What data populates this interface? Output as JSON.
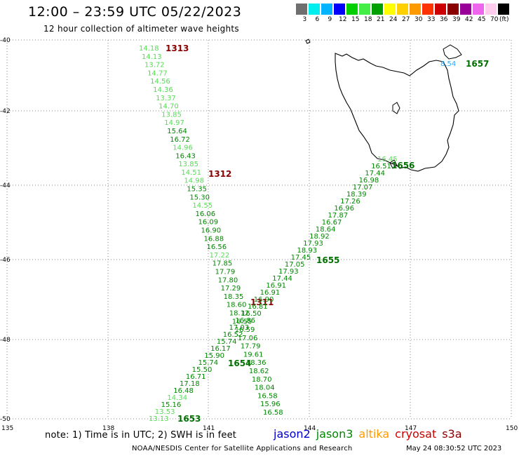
{
  "title": "12:00 – 23:59 UTC 05/22/2023",
  "subtitle": "12 hour collection of altimeter wave heights",
  "scale": {
    "colors": [
      "#6f6f6f",
      "#00eeee",
      "#00b4ff",
      "#0000ff",
      "#00d000",
      "#44ee44",
      "#00a000",
      "#ffff00",
      "#ffd000",
      "#ff9900",
      "#ff3300",
      "#cc0000",
      "#880000",
      "#990099",
      "#ee66ee",
      "#ffccee",
      "#000000"
    ],
    "labels": [
      "3",
      "6",
      "9",
      "12",
      "15",
      "18",
      "21",
      "24",
      "27",
      "30",
      "33",
      "36",
      "39",
      "42",
      "45",
      "70",
      "(ft)"
    ]
  },
  "map": {
    "lon_ticks": [
      "135",
      "138",
      "141",
      "144",
      "147",
      "150"
    ],
    "lat_ticks": [
      "-40",
      "-42",
      "-44",
      "-46",
      "-48",
      "-50"
    ]
  },
  "tracks": [
    {
      "time": "1313",
      "time_color": "#880000",
      "values": [
        "14.18",
        "14.13",
        "13.72",
        "14.77",
        "14.56",
        "14.36",
        "13.37",
        "14.70",
        "13.85",
        "14.97",
        "15.64",
        "16.72",
        "14.96",
        "16.43",
        "13.85",
        "14.51",
        "14.98",
        "15.35",
        "15.30",
        "14.55",
        "16.06",
        "16.09",
        "16.90",
        "16.88",
        "16.56",
        "17.22",
        "17.85",
        "17.79",
        "17.80",
        "17.29",
        "18.35",
        "18.60",
        "18.12",
        "16.55",
        "16.59",
        "17.06",
        "17.79",
        "19.61",
        "18.36",
        "18.62",
        "18.70",
        "18.04",
        "16.58",
        "15.96",
        "16.58"
      ],
      "colors": [
        "light",
        "light",
        "light",
        "light",
        "light",
        "light",
        "light",
        "light",
        "light",
        "light",
        "green",
        "green",
        "light",
        "green",
        "light",
        "light",
        "light",
        "green",
        "green",
        "light",
        "green",
        "green",
        "green",
        "green",
        "green",
        "light",
        "green",
        "green",
        "green",
        "green",
        "green",
        "green",
        "green",
        "green",
        "green",
        "green",
        "green",
        "green",
        "green",
        "green",
        "green",
        "green",
        "green",
        "green",
        "green"
      ]
    },
    {
      "time": "1312",
      "time_color": "#880000"
    },
    {
      "time": "1311",
      "time_color": "#880000"
    },
    {
      "time": "1657",
      "time_color": "#007000",
      "values": [
        "8.54"
      ]
    },
    {
      "time": "1656",
      "time_color": "#007000",
      "values": [
        "16.45",
        "16.51",
        "17.44",
        "16.98",
        "17.07",
        "18.39",
        "17.26",
        "16.96",
        "17.87",
        "16.67",
        "18.64",
        "18.92",
        "17.93",
        "18.93",
        "17.45",
        "17.05",
        "17.93",
        "17.44",
        "16.91",
        "16.91",
        "16.90",
        "16.81",
        "16.50",
        "16.86",
        "17.03",
        "16.52",
        "15.74",
        "16.17",
        "15.90",
        "15.74",
        "15.50",
        "16.71",
        "17.18",
        "16.48",
        "14.34",
        "15.16",
        "13.53",
        "13.13"
      ],
      "colors": [
        "light",
        "green",
        "green",
        "green",
        "green",
        "green",
        "green",
        "green",
        "green",
        "green",
        "green",
        "green",
        "green",
        "green",
        "green",
        "green",
        "green",
        "green",
        "green",
        "green",
        "green",
        "green",
        "green",
        "green",
        "green",
        "green",
        "green",
        "green",
        "green",
        "green",
        "green",
        "green",
        "green",
        "green",
        "light",
        "green",
        "light",
        "light"
      ]
    },
    {
      "time": "1655",
      "time_color": "#007000"
    },
    {
      "time": "1654",
      "time_color": "#007000"
    },
    {
      "time": "1653",
      "time_color": "#007000"
    }
  ],
  "note": "note: 1) Time is in UTC; 2) SWH is in feet",
  "satellites": [
    {
      "name": "jason2",
      "color": "#0000cc"
    },
    {
      "name": "jason3",
      "color": "#008800"
    },
    {
      "name": "altika",
      "color": "#ff9900"
    },
    {
      "name": "cryosat",
      "color": "#cc0000"
    },
    {
      "name": "s3a",
      "color": "#880000"
    }
  ],
  "footer": "NOAA/NESDIS Center for Satellite Applications and Research",
  "footer_date": "May 24 08:30:52 UTC 2023"
}
